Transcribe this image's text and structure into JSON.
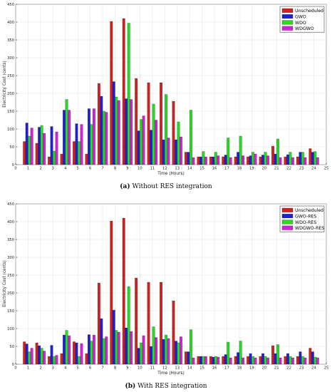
{
  "chart_data": [
    {
      "type": "bar",
      "caption": {
        "tag": "(a)",
        "text": "Without RES integration"
      },
      "xlabel": "Time (Hours)",
      "ylabel": "Electricity Cost (cents)",
      "xlim": [
        0,
        25
      ],
      "ylim": [
        0,
        450
      ],
      "xticks": [
        0,
        1,
        2,
        3,
        4,
        5,
        6,
        7,
        8,
        9,
        10,
        11,
        12,
        13,
        14,
        15,
        16,
        17,
        18,
        19,
        20,
        21,
        22,
        23,
        24,
        25
      ],
      "yticks": [
        0,
        50,
        100,
        150,
        200,
        250,
        300,
        350,
        400,
        450
      ],
      "grid": true,
      "legend": "top-right",
      "categories": [
        1,
        2,
        3,
        4,
        5,
        6,
        7,
        8,
        9,
        10,
        11,
        12,
        13,
        14,
        15,
        16,
        17,
        18,
        19,
        20,
        21,
        22,
        23,
        24
      ],
      "series": [
        {
          "name": "Unscheduled",
          "color": "#d41f1f",
          "values": [
            65,
            60,
            22,
            30,
            65,
            30,
            228,
            402,
            410,
            242,
            230,
            230,
            178,
            35,
            22,
            22,
            22,
            22,
            22,
            22,
            52,
            22,
            22,
            45
          ]
        },
        {
          "name": "GWO",
          "color": "#1f1fd4",
          "values": [
            117,
            105,
            107,
            153,
            115,
            157,
            192,
            233,
            185,
            95,
            97,
            70,
            70,
            35,
            22,
            22,
            27,
            35,
            25,
            27,
            30,
            28,
            35,
            35
          ]
        },
        {
          "name": "WDO",
          "color": "#22dd22",
          "values": [
            80,
            110,
            38,
            183,
            65,
            113,
            150,
            190,
            397,
            127,
            170,
            197,
            120,
            153,
            37,
            35,
            75,
            80,
            35,
            35,
            72,
            35,
            35,
            37
          ]
        },
        {
          "name": "WDGWO",
          "color": "#d61fd6",
          "values": [
            103,
            88,
            92,
            153,
            113,
            157,
            147,
            180,
            183,
            137,
            125,
            75,
            78,
            20,
            22,
            25,
            20,
            25,
            30,
            25,
            20,
            20,
            20,
            20
          ]
        }
      ]
    },
    {
      "type": "bar",
      "caption": {
        "tag": "(b)",
        "text": "With RES integration"
      },
      "xlabel": "Time (Hours)",
      "ylabel": "Electricity Cost (cents)",
      "xlim": [
        0,
        25
      ],
      "ylim": [
        0,
        450
      ],
      "xticks": [
        0,
        1,
        2,
        3,
        4,
        5,
        6,
        7,
        8,
        9,
        10,
        11,
        12,
        13,
        14,
        15,
        16,
        17,
        18,
        19,
        20,
        21,
        22,
        23,
        24,
        25
      ],
      "yticks": [
        0,
        50,
        100,
        150,
        200,
        250,
        300,
        350,
        400,
        450
      ],
      "grid": true,
      "legend": "top-right",
      "categories": [
        1,
        2,
        3,
        4,
        5,
        6,
        7,
        8,
        9,
        10,
        11,
        12,
        13,
        14,
        15,
        16,
        17,
        18,
        19,
        20,
        21,
        22,
        23,
        24
      ],
      "series": [
        {
          "name": "Unscheduled",
          "color": "#d41f1f",
          "values": [
            63,
            60,
            22,
            30,
            63,
            30,
            228,
            402,
            410,
            242,
            230,
            230,
            178,
            35,
            22,
            22,
            22,
            22,
            22,
            22,
            52,
            22,
            22,
            45
          ]
        },
        {
          "name": "GWO-RES",
          "color": "#1f1fd4",
          "values": [
            57,
            52,
            53,
            82,
            60,
            83,
            128,
            152,
            102,
            45,
            50,
            70,
            65,
            35,
            22,
            20,
            27,
            33,
            30,
            30,
            30,
            30,
            35,
            35
          ]
        },
        {
          "name": "WDO-RES",
          "color": "#22dd22",
          "values": [
            35,
            45,
            22,
            95,
            22,
            65,
            72,
            95,
            218,
            60,
            105,
            82,
            60,
            97,
            22,
            22,
            62,
            65,
            22,
            22,
            55,
            22,
            22,
            20
          ]
        },
        {
          "name": "WDGWO-RES",
          "color": "#d61fd6",
          "values": [
            45,
            37,
            25,
            80,
            58,
            82,
            77,
            90,
            92,
            80,
            75,
            72,
            77,
            18,
            22,
            20,
            18,
            18,
            18,
            18,
            18,
            18,
            18,
            18
          ]
        }
      ]
    }
  ]
}
